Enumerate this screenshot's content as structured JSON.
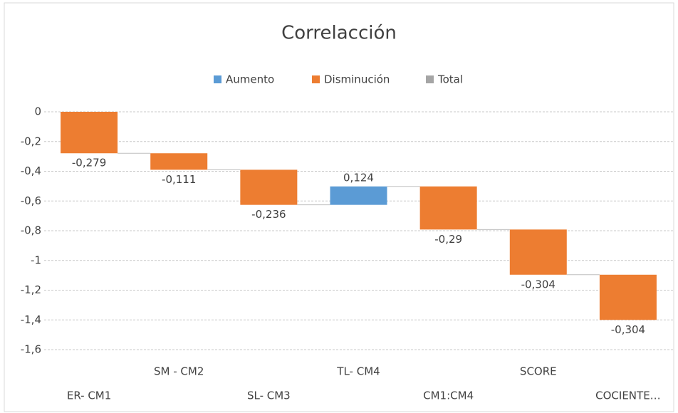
{
  "chart_data": {
    "type": "waterfall",
    "title": "Correlacción",
    "legend": [
      {
        "name": "Aumento",
        "color": "#5b9bd5"
      },
      {
        "name": "Disminución",
        "color": "#ed7d31"
      },
      {
        "name": "Total",
        "color": "#a5a5a5"
      }
    ],
    "categories": [
      "ER- CM1",
      "SM - CM2",
      "SL- CM3",
      "TL- CM4",
      "CM1:CM4",
      "SCORE",
      "COCIENTE…"
    ],
    "values": [
      -0.279,
      -0.111,
      -0.236,
      0.124,
      -0.29,
      -0.304,
      -0.304
    ],
    "value_labels": [
      "-0,279",
      "-0,111",
      "-0,236",
      "0,124",
      "-0,29",
      "-0,304",
      "-0,304"
    ],
    "increase_color": "#5b9bd5",
    "decrease_color": "#ed7d31",
    "ylim": [
      -1.6,
      0
    ],
    "yticks": [
      0,
      {
        "value": -0.2,
        "label": "-0,2"
      },
      {
        "value": -0.4,
        "label": "-0,4"
      },
      {
        "value": -0.6,
        "label": "-0,6"
      },
      {
        "value": -0.8,
        "label": "-0,8"
      },
      -1,
      {
        "value": -1.2,
        "label": "-1,2"
      },
      {
        "value": -1.4,
        "label": "-1,4"
      },
      {
        "value": -1.6,
        "label": "-1,6"
      }
    ],
    "grid": true
  }
}
